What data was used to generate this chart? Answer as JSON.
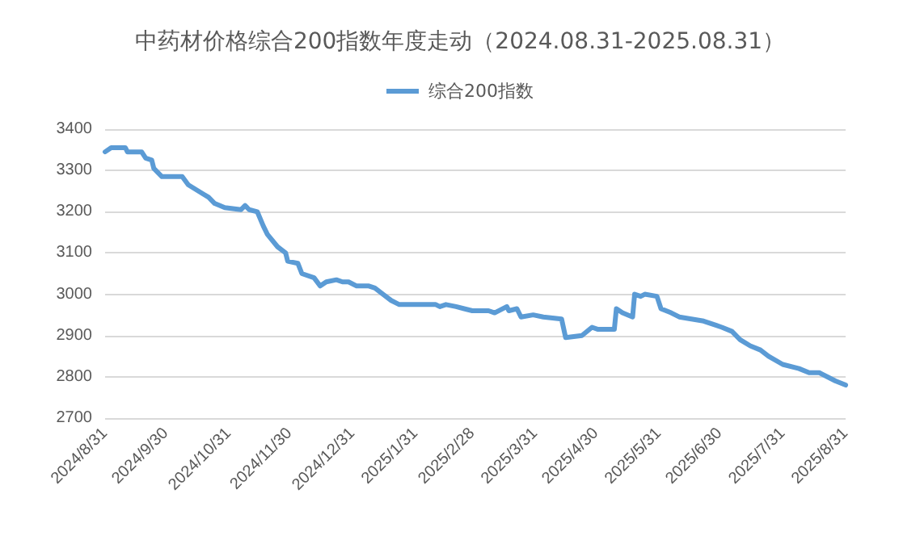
{
  "chart_data": {
    "type": "line",
    "title": "中药材价格综合200指数年度走动（2024.08.31-2025.08.31）",
    "x": [
      "2024-08-31",
      "2024-09-03",
      "2024-09-10",
      "2024-09-11",
      "2024-09-18",
      "2024-09-20",
      "2024-09-23",
      "2024-09-24",
      "2024-09-28",
      "2024-10-08",
      "2024-10-11",
      "2024-10-16",
      "2024-10-21",
      "2024-10-24",
      "2024-10-29",
      "2024-11-06",
      "2024-11-08",
      "2024-11-10",
      "2024-11-14",
      "2024-11-17",
      "2024-11-19",
      "2024-11-24",
      "2024-11-28",
      "2024-11-29",
      "2024-12-04",
      "2024-12-06",
      "2024-12-12",
      "2024-12-15",
      "2024-12-18",
      "2024-12-23",
      "2024-12-26",
      "2024-12-29",
      "2025-01-02",
      "2025-01-08",
      "2025-01-11",
      "2025-01-15",
      "2025-01-19",
      "2025-01-23",
      "2025-02-10",
      "2025-02-12",
      "2025-02-15",
      "2025-02-20",
      "2025-02-24",
      "2025-02-28",
      "2025-03-08",
      "2025-03-11",
      "2025-03-17",
      "2025-03-18",
      "2025-03-22",
      "2025-03-24",
      "2025-03-30",
      "2025-04-04",
      "2025-04-13",
      "2025-04-15",
      "2025-04-23",
      "2025-04-28",
      "2025-05-01",
      "2025-05-09",
      "2025-05-10",
      "2025-05-13",
      "2025-05-18",
      "2025-05-19",
      "2025-05-22",
      "2025-05-24",
      "2025-05-30",
      "2025-06-01",
      "2025-06-06",
      "2025-06-10",
      "2025-06-16",
      "2025-06-22",
      "2025-06-28",
      "2025-07-01",
      "2025-07-06",
      "2025-07-10",
      "2025-07-15",
      "2025-07-20",
      "2025-07-24",
      "2025-07-31",
      "2025-08-08",
      "2025-08-13",
      "2025-08-18",
      "2025-08-26",
      "2025-08-31"
    ],
    "series": [
      {
        "name": "综合200指数",
        "color": "#5b9bd5",
        "values": [
          3345,
          3355,
          3355,
          3345,
          3345,
          3330,
          3325,
          3305,
          3285,
          3285,
          3265,
          3250,
          3235,
          3220,
          3210,
          3205,
          3215,
          3205,
          3200,
          3165,
          3145,
          3115,
          3100,
          3080,
          3075,
          3050,
          3040,
          3020,
          3030,
          3035,
          3030,
          3030,
          3020,
          3020,
          3015,
          3000,
          2985,
          2975,
          2975,
          2970,
          2975,
          2970,
          2965,
          2960,
          2960,
          2955,
          2970,
          2960,
          2965,
          2945,
          2950,
          2945,
          2940,
          2895,
          2900,
          2920,
          2915,
          2915,
          2965,
          2955,
          2945,
          3000,
          2995,
          3000,
          2995,
          2965,
          2955,
          2945,
          2940,
          2935,
          2925,
          2920,
          2910,
          2890,
          2875,
          2865,
          2850,
          2830,
          2820,
          2810,
          2810,
          2790,
          2780
        ]
      }
    ],
    "xlim": [
      "2024-08-31",
      "2025-08-31"
    ],
    "xticks": [
      {
        "value": "2024-08-31",
        "label": "2024/8/31"
      },
      {
        "value": "2024-09-30",
        "label": "2024/9/30"
      },
      {
        "value": "2024-10-31",
        "label": "2024/10/31"
      },
      {
        "value": "2024-11-30",
        "label": "2024/11/30"
      },
      {
        "value": "2024-12-31",
        "label": "2024/12/31"
      },
      {
        "value": "2025-01-31",
        "label": "2025/1/31"
      },
      {
        "value": "2025-02-28",
        "label": "2025/2/28"
      },
      {
        "value": "2025-03-31",
        "label": "2025/3/31"
      },
      {
        "value": "2025-04-30",
        "label": "2025/4/30"
      },
      {
        "value": "2025-05-31",
        "label": "2025/5/31"
      },
      {
        "value": "2025-06-30",
        "label": "2025/6/30"
      },
      {
        "value": "2025-07-31",
        "label": "2025/7/31"
      },
      {
        "value": "2025-08-31",
        "label": "2025/8/31"
      }
    ],
    "ylim": [
      2700,
      3400
    ],
    "yticks": [
      2700,
      2800,
      2900,
      3000,
      3100,
      3200,
      3300,
      3400
    ],
    "grid": "y",
    "legend": "top",
    "marker": "none",
    "line_style": "solid"
  }
}
